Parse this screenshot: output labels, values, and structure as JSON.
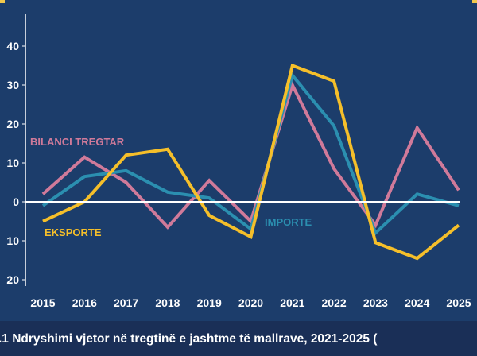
{
  "caption": ".1 Ndryshimi vjetor në tregtinë e  jashtme të mallrave, 2021-2025 (",
  "chart_data": {
    "type": "line",
    "title": "",
    "xlabel": "",
    "ylabel": "",
    "x": [
      "2015",
      "2016",
      "2017",
      "2018",
      "2019",
      "2020",
      "2021",
      "2022",
      "2023",
      "2024",
      "2025"
    ],
    "ylim": [
      -20,
      45
    ],
    "yticks": [
      -20,
      -10,
      0,
      10,
      20,
      30,
      40
    ],
    "ytick_labels": [
      "20",
      "10",
      "0",
      "10",
      "20",
      "30",
      "40"
    ],
    "grid": false,
    "zero_line": true,
    "series": [
      {
        "name": "BILANCI TREGTAR",
        "color": "#d07a9a",
        "values": [
          2,
          11.5,
          5,
          -6.5,
          5.5,
          -5,
          30,
          8.5,
          -6,
          19,
          3
        ]
      },
      {
        "name": "IMPORTE",
        "color": "#2b8fb0",
        "values": [
          -1,
          6.5,
          8,
          2.5,
          1,
          -7,
          32.5,
          19.5,
          -8,
          2,
          -1
        ]
      },
      {
        "name": "EKSPORTE",
        "color": "#f5bf2a",
        "values": [
          -5,
          0,
          12,
          13.5,
          -3.5,
          -9,
          35,
          31,
          -10.5,
          -14.5,
          -6
        ]
      }
    ]
  }
}
